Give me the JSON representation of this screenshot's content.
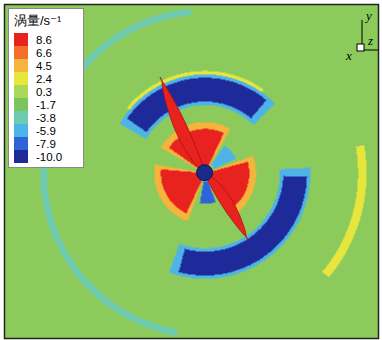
{
  "chart_data": {
    "type": "contour",
    "colorbar_title": "涡量/s⁻¹",
    "colorbar_ticks": [
      8.6,
      6.6,
      4.5,
      2.4,
      0.3,
      -1.7,
      -3.8,
      -5.9,
      -7.9,
      {
        "value": -10,
        "label": "-10.0"
      }
    ],
    "colors": [
      "#e8221e",
      "#f4702a",
      "#f7b43c",
      "#e6e63c",
      "#a9d85a",
      "#7cc45c",
      "#6fcbb0",
      "#4eb3e6",
      "#2e64d8",
      "#1e2a9a"
    ],
    "clim": [
      -10,
      8.6
    ],
    "xlim": [
      -1.18,
      1.02
    ],
    "ylim": [
      -0.97,
      0.99
    ],
    "tick_labels": false,
    "axis_labels": {
      "x": "x",
      "y": "y",
      "z": "z"
    },
    "background_value": -1,
    "regions": [
      {
        "value": -3.8,
        "r": [
          0.93,
          0.97
        ],
        "angle": [
          95,
          260
        ]
      },
      {
        "value": 2.4,
        "r": [
          0.9,
          0.95
        ],
        "angle": [
          -40,
          10
        ]
      },
      {
        "value": 2.4,
        "r": [
          0.56,
          0.6
        ],
        "angle": [
          55,
          140
        ]
      },
      {
        "value": -5.9,
        "r": [
          0.4,
          0.58
        ],
        "angle": [
          45,
          150
        ]
      },
      {
        "value": -10,
        "r": [
          0.42,
          0.56
        ],
        "angle": [
          50,
          145
        ]
      },
      {
        "value": -5.9,
        "r": [
          0.44,
          0.62
        ],
        "angle": [
          -110,
          3
        ]
      },
      {
        "value": -10,
        "r": [
          0.46,
          0.6
        ],
        "angle": [
          -105,
          -2
        ]
      },
      {
        "value": 4.5,
        "r": [
          0,
          0.3
        ],
        "angle": [
          60,
          150
        ]
      },
      {
        "value": 4.5,
        "r": [
          0,
          0.3
        ],
        "angle": [
          170,
          250
        ]
      },
      {
        "value": 4.5,
        "r": [
          0,
          0.3
        ],
        "angle": [
          -60,
          20
        ]
      },
      {
        "value": 8.6,
        "r": [
          0,
          0.26
        ],
        "angle": [
          65,
          145
        ]
      },
      {
        "value": 8.6,
        "r": [
          0,
          0.26
        ],
        "angle": [
          175,
          245
        ]
      },
      {
        "value": 8.6,
        "r": [
          0,
          0.26
        ],
        "angle": [
          -55,
          15
        ]
      },
      {
        "value": -5.9,
        "r": [
          0.06,
          0.2
        ],
        "angle": [
          25,
          55
        ]
      },
      {
        "value": -7.9,
        "r": [
          0.05,
          0.18
        ],
        "angle": [
          260,
          290
        ]
      }
    ]
  }
}
